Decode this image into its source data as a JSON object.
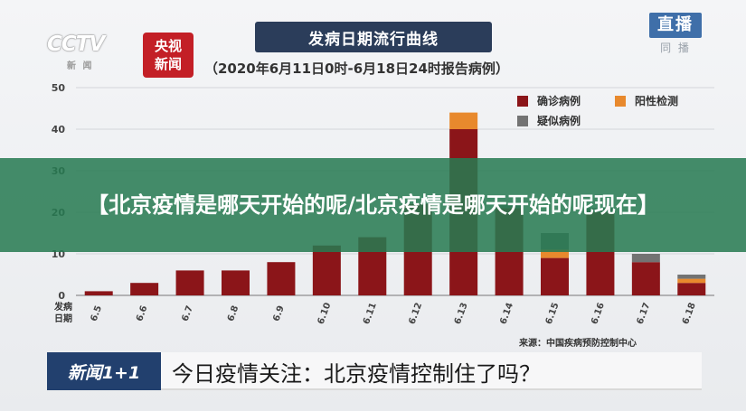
{
  "header": {
    "title": "发病日期流行曲线",
    "subtitle": "（2020年6月11日0时-6月18日24时报告病例）",
    "channel_logo": "CCTV",
    "channel_logo_sub": "新 闻",
    "news_logo_line1": "央视",
    "news_logo_line2": "新闻",
    "live_logo": "直播",
    "live_logo_sub": "同 播"
  },
  "overlay": {
    "title": "【北京疫情是哪天开始的呢/北京疫情是哪天开始的呢现在】"
  },
  "lower_third": {
    "tag": "新闻1+1",
    "headline": "今日疫情关注：北京疫情控制住了吗？"
  },
  "source": "来源：中国疾病预防控制中心",
  "colors": {
    "confirmed": "#8b1519",
    "positive": "#e8892d",
    "suspected": "#737373",
    "title_bg": "#2b3d5a",
    "overlay_bg": "#267a52"
  },
  "chart_data": {
    "type": "bar",
    "stacked": true,
    "title": "发病日期流行曲线",
    "subtitle": "（2020年6月11日0时-6月18日24时报告病例）",
    "xlabel": "发病日期",
    "ylabel": "",
    "categories": [
      "6.5",
      "6.6",
      "6.7",
      "6.8",
      "6.9",
      "6.10",
      "6.11",
      "6.12",
      "6.13",
      "6.14",
      "6.15",
      "6.16",
      "6.17",
      "6.18"
    ],
    "series": [
      {
        "name": "确诊病例",
        "color": "#8b1519",
        "values": [
          1,
          3,
          6,
          6,
          8,
          12,
          14,
          22,
          40,
          21,
          9,
          20,
          8,
          3
        ]
      },
      {
        "name": "阳性检测",
        "color": "#e8892d",
        "values": [
          0,
          0,
          0,
          0,
          0,
          0,
          0,
          0,
          4,
          0,
          2,
          0,
          0,
          1
        ]
      },
      {
        "name": "疑似病例",
        "color": "#737373",
        "values": [
          0,
          0,
          0,
          0,
          0,
          0,
          0,
          0,
          0,
          1,
          4,
          1,
          2,
          1
        ]
      }
    ],
    "yticks": [
      0,
      10,
      20,
      30,
      40,
      50
    ],
    "ylim": [
      0,
      50
    ],
    "grid": true,
    "legend_position": "top-right"
  }
}
